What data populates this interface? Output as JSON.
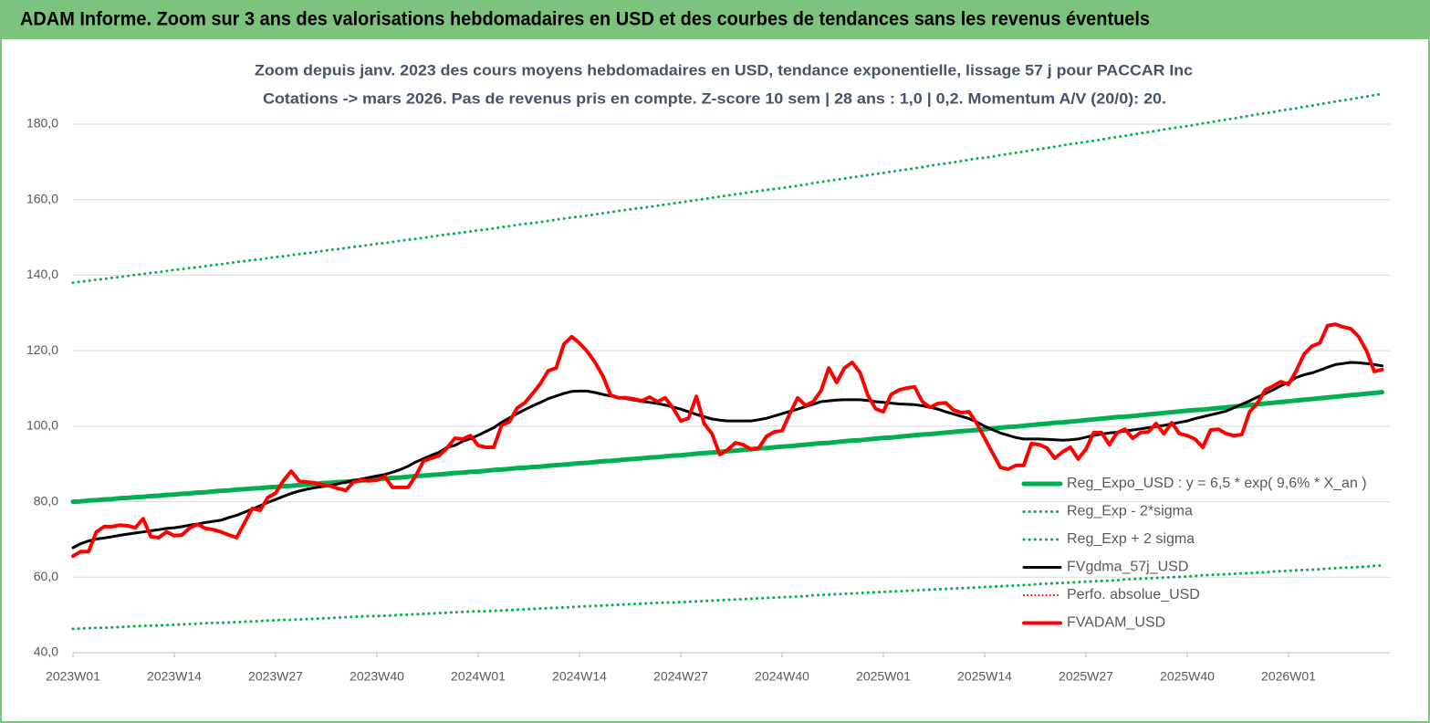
{
  "header": {
    "title": "ADAM Informe. Zoom sur 3 ans des valorisations hebdomadaires en USD et des courbes de tendances sans les revenus éventuels"
  },
  "chart_data": {
    "type": "line",
    "title": "Zoom depuis janv. 2023 des cours moyens hebdomadaires en USD, tendance exponentielle, lissage 57 j pour PACCAR Inc",
    "subtitle": "Cotations -> mars 2026. Pas de revenus pris en compte. Z-score 10 sem | 28 ans : 1,0 | 0,2. Momentum A/V (20/0): 20.",
    "categories": [
      "2023W01",
      null,
      null,
      null,
      null,
      null,
      null,
      null,
      null,
      null,
      null,
      null,
      null,
      "2023W14",
      null,
      null,
      null,
      null,
      null,
      null,
      null,
      null,
      null,
      null,
      null,
      null,
      "2023W27",
      null,
      null,
      null,
      null,
      null,
      null,
      null,
      null,
      null,
      null,
      null,
      null,
      "2023W40",
      null,
      null,
      null,
      null,
      null,
      null,
      null,
      null,
      null,
      null,
      null,
      null,
      "2024W01",
      null,
      null,
      null,
      null,
      null,
      null,
      null,
      null,
      null,
      null,
      null,
      null,
      "2024W14",
      null,
      null,
      null,
      null,
      null,
      null,
      null,
      null,
      null,
      null,
      null,
      null,
      "2024W27",
      null,
      null,
      null,
      null,
      null,
      null,
      null,
      null,
      null,
      null,
      null,
      null,
      "2024W40",
      null,
      null,
      null,
      null,
      null,
      null,
      null,
      null,
      null,
      null,
      null,
      null,
      "2025W01",
      null,
      null,
      null,
      null,
      null,
      null,
      null,
      null,
      null,
      null,
      null,
      null,
      "2025W14",
      null,
      null,
      null,
      null,
      null,
      null,
      null,
      null,
      null,
      null,
      null,
      null,
      "2025W27",
      null,
      null,
      null,
      null,
      null,
      null,
      null,
      null,
      null,
      null,
      null,
      null,
      "2025W40",
      null,
      null,
      null,
      null,
      null,
      null,
      null,
      null,
      null,
      null,
      null,
      null,
      "2026W01",
      null,
      null,
      null,
      null,
      null,
      null,
      null,
      null,
      null,
      null,
      null,
      null
    ],
    "ylim": [
      40,
      180
    ],
    "yticks": [
      {
        "value": 40,
        "label": "40,0"
      },
      {
        "value": 60,
        "label": "60,0"
      },
      {
        "value": 80,
        "label": "80,0"
      },
      {
        "value": 100,
        "label": "100,0"
      },
      {
        "value": 120,
        "label": "120,0"
      },
      {
        "value": 140,
        "label": "140,0"
      },
      {
        "value": 160,
        "label": "160,0"
      },
      {
        "value": 180,
        "label": "180,0"
      }
    ],
    "grid": true,
    "legend": "lower right",
    "series": [
      {
        "name": "Reg_Expo_USD : y = 6,5 * exp( 9,6% * X_an )",
        "color": "#00b050",
        "style": "solid",
        "width": 5,
        "values": [
          80.0,
          80.1,
          80.3,
          80.4,
          80.6,
          80.7,
          80.9,
          81.0,
          81.2,
          81.3,
          81.5,
          81.6,
          81.8,
          81.9,
          82.1,
          82.2,
          82.4,
          82.5,
          82.7,
          82.9,
          83.0,
          83.2,
          83.3,
          83.5,
          83.6,
          83.8,
          83.9,
          84.1,
          84.2,
          84.4,
          84.5,
          84.7,
          84.9,
          85.0,
          85.2,
          85.3,
          85.5,
          85.6,
          85.8,
          86.0,
          86.1,
          86.3,
          86.4,
          86.6,
          86.8,
          86.9,
          87.1,
          87.2,
          87.4,
          87.6,
          87.7,
          87.9,
          88.0,
          88.2,
          88.4,
          88.5,
          88.7,
          88.9,
          89.0,
          89.2,
          89.3,
          89.5,
          89.7,
          89.8,
          90.0,
          90.2,
          90.3,
          90.5,
          90.7,
          90.8,
          91.0,
          91.2,
          91.3,
          91.5,
          91.7,
          91.8,
          92.0,
          92.2,
          92.3,
          92.5,
          92.7,
          92.9,
          93.0,
          93.2,
          93.4,
          93.5,
          93.7,
          93.9,
          94.1,
          94.2,
          94.4,
          94.6,
          94.7,
          94.9,
          95.1,
          95.3,
          95.5,
          95.6,
          95.8,
          96.0,
          96.2,
          96.3,
          96.5,
          96.7,
          96.9,
          97.0,
          97.2,
          97.4,
          97.6,
          97.8,
          97.9,
          98.1,
          98.3,
          98.5,
          98.7,
          98.8,
          99.0,
          99.2,
          99.4,
          99.6,
          99.8,
          99.9,
          100.1,
          100.3,
          100.5,
          100.7,
          100.9,
          101.0,
          101.2,
          101.4,
          101.6,
          101.8,
          102.0,
          102.2,
          102.4,
          102.5,
          102.7,
          102.9,
          103.1,
          103.3,
          103.5,
          103.7,
          103.9,
          104.1,
          104.3,
          104.4,
          104.6,
          104.8,
          105.0,
          105.2,
          105.4,
          105.6,
          105.8,
          106.0,
          106.2,
          106.4,
          106.6,
          106.8,
          107.0,
          107.2,
          107.4,
          107.6,
          107.8,
          108.0,
          108.2,
          108.4,
          108.6,
          108.8,
          109.0
        ]
      },
      {
        "name": "Reg_Exp - 2*sigma",
        "color": "#00b050",
        "style": "dotted",
        "width": 3,
        "values": [
          46.3,
          46.4,
          46.5,
          46.6,
          46.6,
          46.7,
          46.8,
          46.9,
          47.0,
          47.1,
          47.2,
          47.2,
          47.3,
          47.4,
          47.5,
          47.6,
          47.7,
          47.8,
          47.9,
          47.9,
          48.0,
          48.1,
          48.2,
          48.3,
          48.4,
          48.5,
          48.6,
          48.7,
          48.7,
          48.8,
          48.9,
          49.0,
          49.1,
          49.2,
          49.3,
          49.4,
          49.5,
          49.6,
          49.7,
          49.7,
          49.8,
          49.9,
          50.0,
          50.1,
          50.2,
          50.3,
          50.4,
          50.5,
          50.6,
          50.7,
          50.8,
          50.9,
          51.0,
          51.0,
          51.1,
          51.2,
          51.3,
          51.4,
          51.5,
          51.6,
          51.7,
          51.8,
          51.9,
          52.0,
          52.1,
          52.2,
          52.3,
          52.4,
          52.5,
          52.6,
          52.7,
          52.8,
          52.9,
          53.0,
          53.1,
          53.2,
          53.3,
          53.3,
          53.4,
          53.5,
          53.6,
          53.7,
          53.8,
          53.9,
          54.0,
          54.1,
          54.2,
          54.3,
          54.4,
          54.5,
          54.6,
          54.7,
          54.8,
          54.9,
          55.0,
          55.2,
          55.3,
          55.4,
          55.5,
          55.6,
          55.7,
          55.8,
          55.9,
          56.0,
          56.1,
          56.2,
          56.3,
          56.4,
          56.5,
          56.6,
          56.7,
          56.8,
          56.9,
          57.0,
          57.1,
          57.2,
          57.3,
          57.4,
          57.5,
          57.6,
          57.7,
          57.8,
          57.9,
          58.0,
          58.2,
          58.3,
          58.4,
          58.5,
          58.6,
          58.7,
          58.8,
          58.9,
          59.0,
          59.1,
          59.2,
          59.4,
          59.5,
          59.6,
          59.7,
          59.8,
          59.9,
          60.0,
          60.1,
          60.2,
          60.3,
          60.5,
          60.6,
          60.7,
          60.8,
          60.9,
          61.0,
          61.1,
          61.2,
          61.3,
          61.5,
          61.6,
          61.7,
          61.8,
          61.9,
          62.0,
          62.1,
          62.3,
          62.4,
          62.5,
          62.6,
          62.7,
          62.8,
          63.0,
          63.1
        ]
      },
      {
        "name": "Reg_Exp + 2 sigma",
        "color": "#00b050",
        "style": "dotted",
        "width": 3,
        "values": [
          138.0,
          138.3,
          138.5,
          138.8,
          139.0,
          139.3,
          139.5,
          139.8,
          140.1,
          140.3,
          140.6,
          140.8,
          141.1,
          141.4,
          141.6,
          141.9,
          142.1,
          142.4,
          142.7,
          142.9,
          143.2,
          143.5,
          143.7,
          144.0,
          144.2,
          144.5,
          144.8,
          145.0,
          145.3,
          145.6,
          145.8,
          146.1,
          146.4,
          146.7,
          146.9,
          147.2,
          147.5,
          147.7,
          148.0,
          148.3,
          148.5,
          148.8,
          149.1,
          149.4,
          149.6,
          149.9,
          150.2,
          150.5,
          150.8,
          151.0,
          151.3,
          151.6,
          151.9,
          152.1,
          152.4,
          152.7,
          153.0,
          153.3,
          153.6,
          153.8,
          154.1,
          154.4,
          154.7,
          155.0,
          155.3,
          155.5,
          155.8,
          156.1,
          156.4,
          156.7,
          157.0,
          157.3,
          157.6,
          157.8,
          158.1,
          158.4,
          158.7,
          159.0,
          159.3,
          159.6,
          159.9,
          160.2,
          160.5,
          160.8,
          161.1,
          161.4,
          161.7,
          162.0,
          162.3,
          162.6,
          162.8,
          163.1,
          163.4,
          163.7,
          164.0,
          164.4,
          164.7,
          165.0,
          165.3,
          165.6,
          165.9,
          166.2,
          166.5,
          166.8,
          167.1,
          167.4,
          167.7,
          168.0,
          168.3,
          168.6,
          169.0,
          169.3,
          169.6,
          169.9,
          170.2,
          170.6,
          170.9,
          171.1,
          171.4,
          171.8,
          172.1,
          172.4,
          172.7,
          173.1,
          173.4,
          173.7,
          174.0,
          174.4,
          174.7,
          175.0,
          175.3,
          175.6,
          175.9,
          176.3,
          176.6,
          176.9,
          177.3,
          177.6,
          177.9,
          178.2,
          178.6,
          178.9,
          179.2,
          179.5,
          179.8,
          180.2,
          180.5,
          180.9,
          181.2,
          181.5,
          181.9,
          182.2,
          182.6,
          182.9,
          183.2,
          183.6,
          183.9,
          184.2,
          184.6,
          184.9,
          185.3,
          185.6,
          186.0,
          186.3,
          186.6,
          187.0,
          187.3,
          187.7,
          188.0
        ]
      },
      {
        "name": "FVgdma_57j_USD",
        "color": "#000000",
        "style": "solid",
        "width": 3,
        "values": [
          67.8,
          68.9,
          69.6,
          70.1,
          70.4,
          70.7,
          71.1,
          71.4,
          71.7,
          72.0,
          72.3,
          72.6,
          72.9,
          73.1,
          73.4,
          73.8,
          74.1,
          74.5,
          74.8,
          75.1,
          75.8,
          76.4,
          77.2,
          78.0,
          78.9,
          79.8,
          80.6,
          81.4,
          82.2,
          82.8,
          83.3,
          83.7,
          84.0,
          84.3,
          84.7,
          85.2,
          85.6,
          86.0,
          86.4,
          86.8,
          87.2,
          87.8,
          88.5,
          89.4,
          90.5,
          91.4,
          92.3,
          93.1,
          94.4,
          94.9,
          96.0,
          96.7,
          97.6,
          98.6,
          99.6,
          101.0,
          102.2,
          103.3,
          104.4,
          105.4,
          106.3,
          107.3,
          108.0,
          108.7,
          109.2,
          109.3,
          109.3,
          108.9,
          108.4,
          108.0,
          107.6,
          107.3,
          106.9,
          106.6,
          106.3,
          106.0,
          105.6,
          105.1,
          104.5,
          103.8,
          103.1,
          102.5,
          101.9,
          101.6,
          101.4,
          101.4,
          101.4,
          101.4,
          101.7,
          102.1,
          102.7,
          103.3,
          103.9,
          104.5,
          105.2,
          105.8,
          106.5,
          106.7,
          106.9,
          107.0,
          107.0,
          107.0,
          106.8,
          106.5,
          106.3,
          106.1,
          105.9,
          105.8,
          105.7,
          105.4,
          105.0,
          104.5,
          103.8,
          103.2,
          102.6,
          102.0,
          101.1,
          100.0,
          99.1,
          98.2,
          97.6,
          97.0,
          96.6,
          96.6,
          96.6,
          96.5,
          96.4,
          96.3,
          96.4,
          96.6,
          97.1,
          97.6,
          97.9,
          98.2,
          98.4,
          98.7,
          99.0,
          99.3,
          99.6,
          99.9,
          100.2,
          100.6,
          101.0,
          101.4,
          102.0,
          102.5,
          103.0,
          103.5,
          104.0,
          104.9,
          105.8,
          106.7,
          107.7,
          108.6,
          109.6,
          110.7,
          111.6,
          112.9,
          113.6,
          114.1,
          114.8,
          115.6,
          116.3,
          116.6,
          116.9,
          116.8,
          116.6,
          116.3,
          116.0
        ]
      },
      {
        "name": "Perfo. absolue_USD",
        "color": "#ff0000",
        "style": "dotted",
        "width": 2
      },
      {
        "name": "FVADAM_USD",
        "color": "#ff0000",
        "style": "solid",
        "width": 4,
        "values": [
          65.6,
          66.8,
          66.8,
          72.0,
          73.4,
          73.4,
          73.8,
          73.6,
          73.1,
          75.5,
          70.7,
          70.5,
          72.0,
          71.0,
          71.2,
          73.1,
          74.0,
          72.9,
          72.6,
          72.0,
          71.2,
          70.5,
          74.3,
          78.2,
          77.7,
          81.1,
          82.3,
          85.5,
          88.1,
          85.5,
          85.2,
          85.0,
          84.5,
          84.2,
          83.5,
          83.0,
          85.2,
          85.7,
          85.5,
          85.7,
          86.7,
          83.8,
          83.8,
          83.8,
          86.9,
          90.8,
          91.5,
          92.2,
          94.2,
          96.8,
          96.6,
          97.5,
          94.9,
          94.4,
          94.4,
          100.2,
          101.2,
          104.8,
          106.2,
          108.7,
          111.3,
          114.7,
          115.4,
          121.7,
          123.7,
          122.0,
          119.8,
          116.9,
          113.3,
          108.2,
          107.5,
          107.5,
          107.2,
          106.7,
          107.7,
          106.5,
          107.5,
          104.8,
          101.4,
          102.1,
          107.9,
          100.7,
          98.0,
          92.5,
          93.7,
          95.6,
          95.1,
          93.9,
          94.2,
          97.3,
          98.5,
          98.8,
          103.3,
          107.5,
          105.5,
          106.5,
          109.4,
          115.4,
          111.6,
          115.4,
          116.9,
          114.2,
          108.2,
          104.6,
          103.8,
          108.4,
          109.6,
          110.1,
          110.4,
          106.5,
          105.0,
          106.0,
          106.2,
          104.3,
          103.6,
          103.8,
          100.7,
          96.8,
          93.0,
          89.1,
          88.6,
          89.6,
          89.6,
          95.4,
          95.1,
          94.2,
          91.5,
          93.2,
          94.4,
          91.3,
          93.9,
          98.3,
          98.3,
          95.1,
          98.3,
          99.2,
          96.8,
          98.3,
          98.5,
          100.7,
          98.0,
          100.9,
          98.0,
          97.5,
          96.6,
          94.4,
          99.0,
          99.2,
          98.0,
          97.5,
          97.8,
          103.8,
          106.0,
          109.6,
          110.6,
          111.8,
          111.1,
          114.7,
          119.1,
          121.2,
          122.0,
          126.6,
          127.0,
          126.3,
          125.8,
          123.7,
          120.0,
          114.5,
          115.0
        ]
      }
    ]
  }
}
